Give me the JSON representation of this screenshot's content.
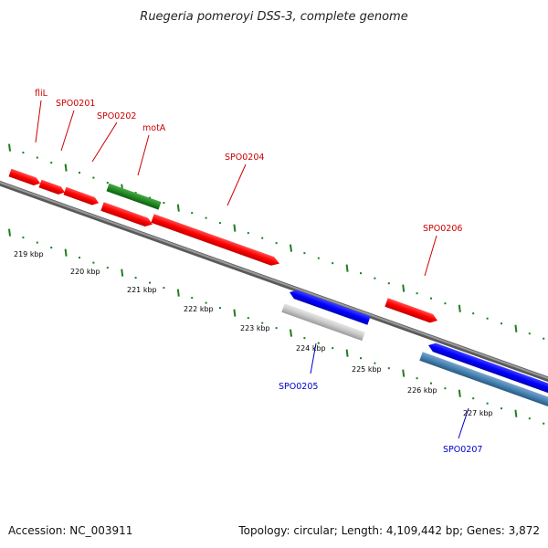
{
  "title": "Ruegeria pomeroyi DSS-3, complete genome",
  "footer": {
    "accession": "Accession: NC_003911",
    "summary": "Topology: circular; Length: 4,109,442 bp; Genes: 3,872"
  },
  "colors": {
    "forward_gene": "#ff0000",
    "forward_gene_alt": "#228b22",
    "reverse_gene": "#0000ff",
    "reverse_gene_pseudo": "#c8c8c8",
    "reverse_gene_alt": "#4682b4",
    "backbone": "#808080",
    "tick": "#1e7d1e",
    "forward_label": "#cc0000",
    "reverse_label": "#0000cc"
  },
  "tick_labels": [
    "219 kbp",
    "220 kbp",
    "221 kbp",
    "222 kbp",
    "223 kbp",
    "224 kbp",
    "225 kbp",
    "226 kbp",
    "227 kbp"
  ],
  "forward_labels": [
    "fliL",
    "SPO0201",
    "SPO0202",
    "motA",
    "SPO0204",
    "SPO0206"
  ],
  "reverse_labels": [
    "SPO0205",
    "SPO0207"
  ]
}
